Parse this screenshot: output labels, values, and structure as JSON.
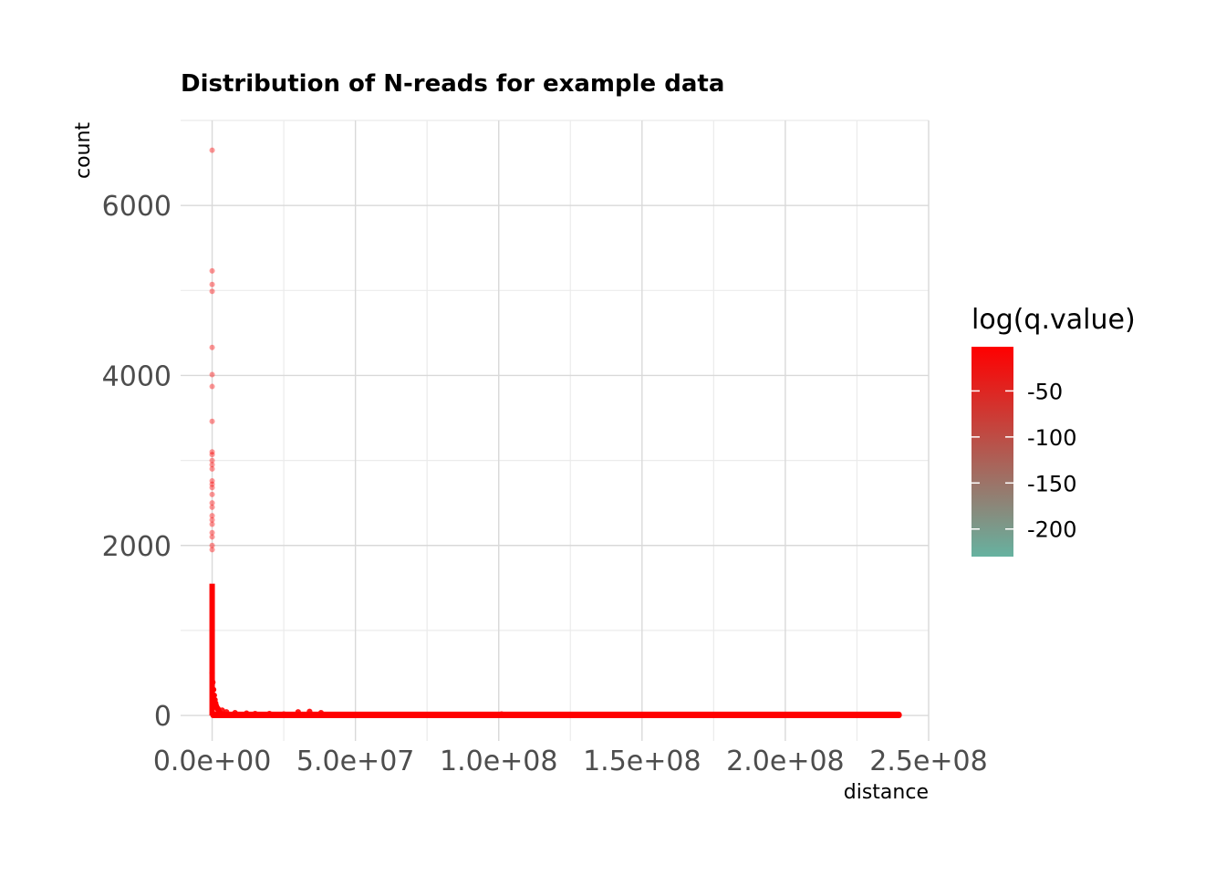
{
  "chart_data": {
    "type": "scatter",
    "title": "Distribution of N-reads for example data",
    "xlabel": "distance",
    "ylabel": "count",
    "xlim": [
      -11000000.0,
      250000000.0
    ],
    "ylim": [
      -300,
      7000
    ],
    "x_ticks": [
      0,
      50000000,
      100000000,
      150000000,
      200000000,
      250000000
    ],
    "x_tick_labels": [
      "0.0e+00",
      "5.0e+07",
      "1.0e+08",
      "1.5e+08",
      "2.0e+08",
      "2.5e+08"
    ],
    "y_ticks": [
      0,
      2000,
      4000,
      6000
    ],
    "y_tick_labels": [
      "0",
      "2000",
      "4000",
      "6000"
    ],
    "grid": true,
    "point_color": "#ff0000",
    "point_alpha": 0.4,
    "outliers": {
      "x": [
        0,
        0,
        0,
        0,
        0,
        0,
        0,
        0,
        0,
        0,
        0,
        0,
        0,
        0,
        0,
        0,
        0,
        0,
        0,
        0,
        0,
        0,
        0,
        0,
        0,
        0
      ],
      "y": [
        6650,
        5230,
        5070,
        4990,
        4330,
        4010,
        3870,
        3460,
        3100,
        3070,
        3000,
        2950,
        2900,
        2760,
        2720,
        2680,
        2600,
        2500,
        2450,
        2350,
        2300,
        2250,
        2150,
        2100,
        2000,
        1950
      ]
    },
    "near_zero_points": {
      "x": [
        1000000,
        2000000,
        3500000,
        5000000,
        8000000,
        12000000,
        15000000,
        20000000,
        25000000,
        30000000,
        34000000,
        38000000,
        101000000
      ],
      "y": [
        120,
        80,
        60,
        40,
        30,
        25,
        20,
        20,
        15,
        40,
        45,
        30,
        15
      ]
    },
    "dense_band": {
      "x_range": [
        0,
        240000000
      ],
      "y_range": [
        0,
        12
      ]
    },
    "spike": {
      "x": 0,
      "y_range": [
        0,
        1550
      ]
    },
    "legend": {
      "title": "log(q.value)",
      "type": "colorbar",
      "position": "right",
      "low_color": "#66b2a0",
      "high_color": "#ff0000",
      "range": [
        -230,
        -2
      ],
      "breaks": [
        -50,
        -100,
        -150,
        -200
      ],
      "break_labels": [
        "-50",
        "-100",
        "-150",
        "-200"
      ]
    }
  }
}
